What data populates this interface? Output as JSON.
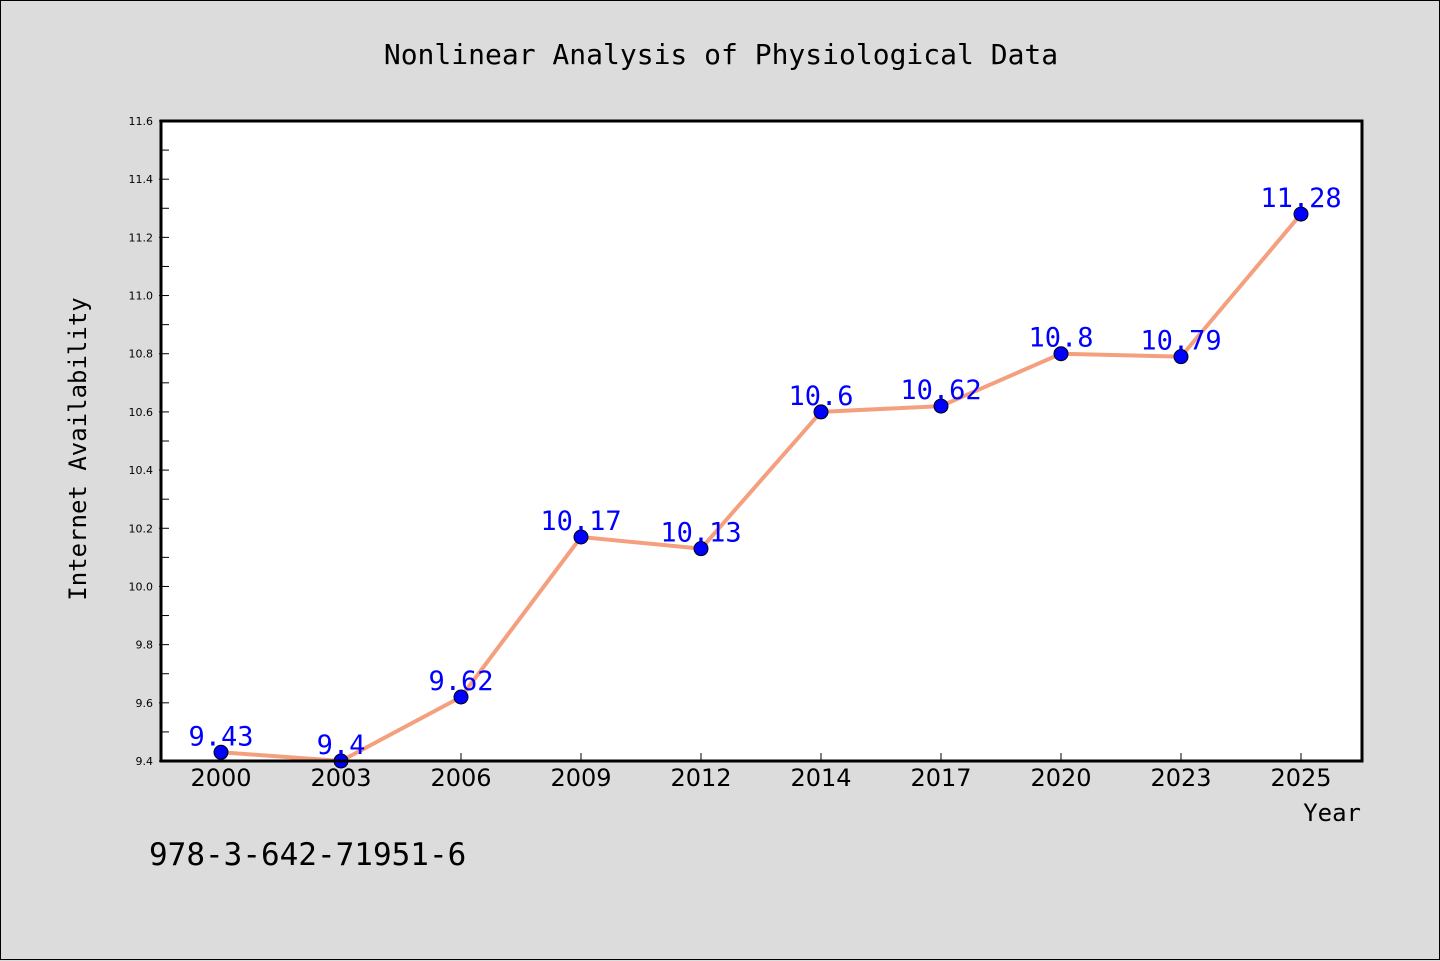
{
  "chart_data": {
    "type": "line",
    "title": "Nonlinear Analysis of Physiological Data",
    "xlabel": "Year",
    "ylabel": "Internet Availability",
    "categories": [
      "2000",
      "2003",
      "2006",
      "2009",
      "2012",
      "2014",
      "2017",
      "2020",
      "2023",
      "2025"
    ],
    "series": [
      {
        "values": [
          9.43,
          9.4,
          9.62,
          10.17,
          10.13,
          10.6,
          10.62,
          10.8,
          10.79,
          11.28
        ],
        "data_labels": [
          "9.43",
          "9.4",
          "9.62",
          "10.17",
          "10.13",
          "10.6",
          "10.62",
          "10.8",
          "10.79",
          "11.28"
        ]
      }
    ],
    "ylim": [
      9.4,
      11.6
    ],
    "yticks": [
      "9.4",
      "9.6",
      "9.8",
      "10.0",
      "10.2",
      "10.4",
      "10.6",
      "10.8",
      "11.0",
      "11.2",
      "11.4",
      "11.6"
    ],
    "grid": false,
    "colors": {
      "line": "#f4a07e",
      "marker": "#0000ff",
      "data_label": "#0000ff",
      "background": "#dcdcdc",
      "plot_area": "#ffffff"
    }
  },
  "footer": {
    "isbn": "978-3-642-71951-6"
  }
}
